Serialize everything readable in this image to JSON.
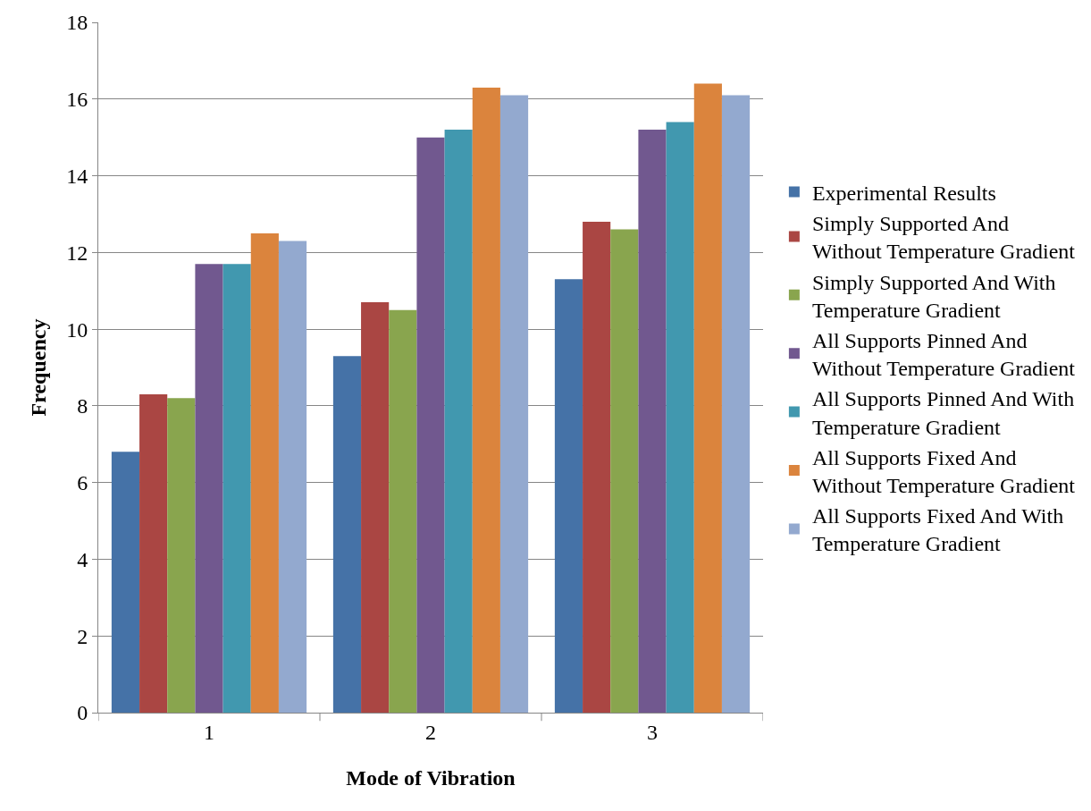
{
  "chart_data": {
    "type": "bar",
    "xlabel": "Mode of Vibration",
    "ylabel": "Frequency",
    "categories": [
      "1",
      "2",
      "3"
    ],
    "series": [
      {
        "name": "Experimental Results",
        "color": "#4572a7",
        "values": [
          6.8,
          9.3,
          11.3
        ]
      },
      {
        "name": "Simply Supported And\nWithout Temperature Gradient",
        "color": "#aa4643",
        "values": [
          8.3,
          10.7,
          12.8
        ]
      },
      {
        "name": "Simply Supported And With\nTemperature Gradient",
        "color": "#89a54e",
        "values": [
          8.2,
          10.5,
          12.6
        ]
      },
      {
        "name": "All Supports Pinned And\nWithout Temperature Gradient",
        "color": "#71588f",
        "values": [
          11.7,
          15.0,
          15.2
        ]
      },
      {
        "name": "All Supports Pinned And With\nTemperature Gradient",
        "color": "#4198af",
        "values": [
          11.7,
          15.2,
          15.4
        ]
      },
      {
        "name": "All Supports Fixed And\nWithout Temperature Gradient",
        "color": "#db843d",
        "values": [
          12.5,
          16.3,
          16.4
        ]
      },
      {
        "name": "All Supports Fixed And With\nTemperature Gradient",
        "color": "#93a9cf",
        "values": [
          12.3,
          16.1,
          16.1
        ]
      }
    ],
    "ylim": [
      0,
      18
    ],
    "yticks": [
      0,
      2,
      4,
      6,
      8,
      10,
      12,
      14,
      16,
      18
    ],
    "grid": "y",
    "legend": "right"
  }
}
